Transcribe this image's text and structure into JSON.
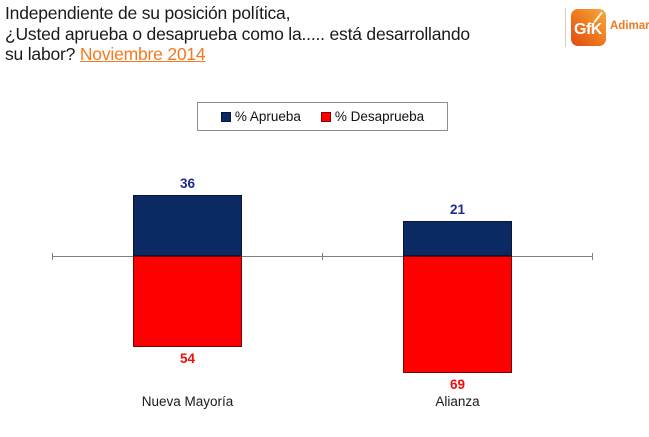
{
  "header": {
    "title_line1": "Independiente de su posición política,",
    "title_line2": "¿Usted aprueba o desaprueba como la..... está desarrollando",
    "title_line3_prefix": "su labor? ",
    "title_line3_highlight": "Noviembre 2014"
  },
  "logo": {
    "brand": "GfK",
    "suffix": "Adimark",
    "brand_color": "#ee7a20"
  },
  "chart_data": {
    "type": "bar",
    "subtype": "diverging_stacked_columns",
    "categories": [
      "Nueva Mayoría",
      "Alianza"
    ],
    "series": [
      {
        "name": "% Aprueba",
        "color": "#0b2a63",
        "label_color": "#1f2a8c",
        "direction": "up",
        "values": [
          36,
          21
        ]
      },
      {
        "name": "% Desaprueba",
        "color": "#fd0000",
        "label_color": "#f40b0b",
        "direction": "down",
        "values": [
          54,
          69
        ]
      }
    ],
    "value_labels": true,
    "grid": false,
    "legend_position": "top-center",
    "axis": {
      "baseline": 0,
      "line_color": "#808080"
    }
  }
}
